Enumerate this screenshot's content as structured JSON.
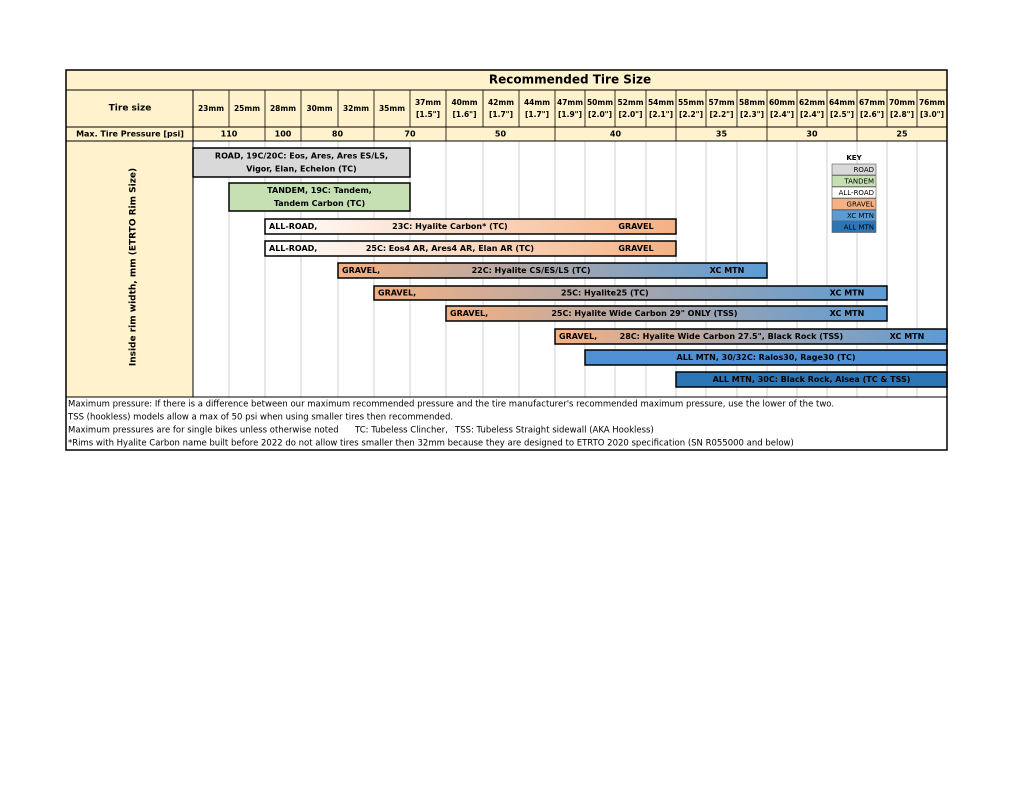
{
  "title": "Recommended Tire Size",
  "header": {
    "label": "Tire size",
    "columns": [
      {
        "size": "23mm"
      },
      {
        "size": "25mm"
      },
      {
        "size": "28mm"
      },
      {
        "size": "30mm"
      },
      {
        "size": "32mm"
      },
      {
        "size": "35mm"
      },
      {
        "size": "37mm",
        "inch": "[1.5\"]"
      },
      {
        "size": "40mm",
        "inch": "[1.6\"]"
      },
      {
        "size": "42mm",
        "inch": "[1.7\"]"
      },
      {
        "size": "44mm",
        "inch": "[1.7\"]"
      },
      {
        "size": "47mm",
        "inch": "[1.9\"]"
      },
      {
        "size": "50mm",
        "inch": "[2.0\"]"
      },
      {
        "size": "52mm",
        "inch": "[2.0\"]"
      },
      {
        "size": "54mm",
        "inch": "[2.1\"]"
      },
      {
        "size": "55mm",
        "inch": "[2.2\"]"
      },
      {
        "size": "57mm",
        "inch": "[2.2\"]"
      },
      {
        "size": "58mm",
        "inch": "[2.3\"]"
      },
      {
        "size": "60mm",
        "inch": "[2.4\"]"
      },
      {
        "size": "62mm",
        "inch": "[2.4\"]"
      },
      {
        "size": "64mm",
        "inch": "[2.5\"]"
      },
      {
        "size": "67mm",
        "inch": "[2.6\"]"
      },
      {
        "size": "70mm",
        "inch": "[2.8\"]"
      },
      {
        "size": "76mm",
        "inch": "[3.0\"]"
      }
    ]
  },
  "pressure": {
    "label": "Max. Tire Pressure [psi]",
    "values": [
      110,
      100,
      80,
      70,
      50,
      40,
      35,
      30,
      25
    ]
  },
  "axis_label": "Inside rim width, mm (ETRTO Rim Size)",
  "bars": [
    {
      "lines": [
        "ROAD, 19C/20C: Eos, Ares, Ares ES/LS,",
        "Vigor, Elan, Echelon (TC)"
      ]
    },
    {
      "lines": [
        "TANDEM, 19C: Tandem,",
        "Tandem Carbon  (TC)"
      ]
    },
    {
      "left": "ALL-ROAD,",
      "center": "23C: Hyalite Carbon* (TC)",
      "right": "GRAVEL"
    },
    {
      "left": "ALL-ROAD,",
      "center": "25C: Eos4 AR, Ares4 AR, Elan AR (TC)",
      "right": "GRAVEL"
    },
    {
      "left": "GRAVEL,",
      "center": "22C: Hyalite   CS/ES/LS (TC)",
      "right": "XC MTN"
    },
    {
      "left": "GRAVEL,",
      "center": "25C: Hyalite25  (TC)",
      "right": "XC MTN"
    },
    {
      "left": "GRAVEL,",
      "center": "25C: Hyalite Wide Carbon 29\" ONLY  (TSS)",
      "right": "XC MTN"
    },
    {
      "left": "GRAVEL,",
      "center": "28C: Hyalite Wide Carbon 27.5\", Black Rock (TSS)",
      "right": "XC MTN"
    },
    {
      "center": "ALL MTN, 30/32C: Ralos30, Rage30 (TC)"
    },
    {
      "center": "ALL MTN, 30C: Black Rock, Alsea (TC & TSS)"
    }
  ],
  "key": {
    "title": "KEY",
    "items": [
      "ROAD",
      "TANDEM",
      "ALL-ROAD",
      "GRAVEL",
      "XC MTN",
      "ALL MTN"
    ]
  },
  "notes": [
    "Maximum pressure: If there is a difference between our maximum recommended pressure and the tire manufacturer's recommended maximum pressure, use the lower of the two.",
    "TSS (hookless) models allow a max of 50 psi when using smaller tires then recommended.",
    [
      "Maximum pressures are for single bikes unless otherwise noted",
      "TC: Tubeless Clincher,",
      "TSS: Tubeless Straight sidewall (AKA Hookless)"
    ],
    "*Rims with Hyalite Carbon name built before 2022 do not allow tires smaller then 32mm because they are designed to ETRTO 2020 specification (SN R055000 and below)"
  ]
}
